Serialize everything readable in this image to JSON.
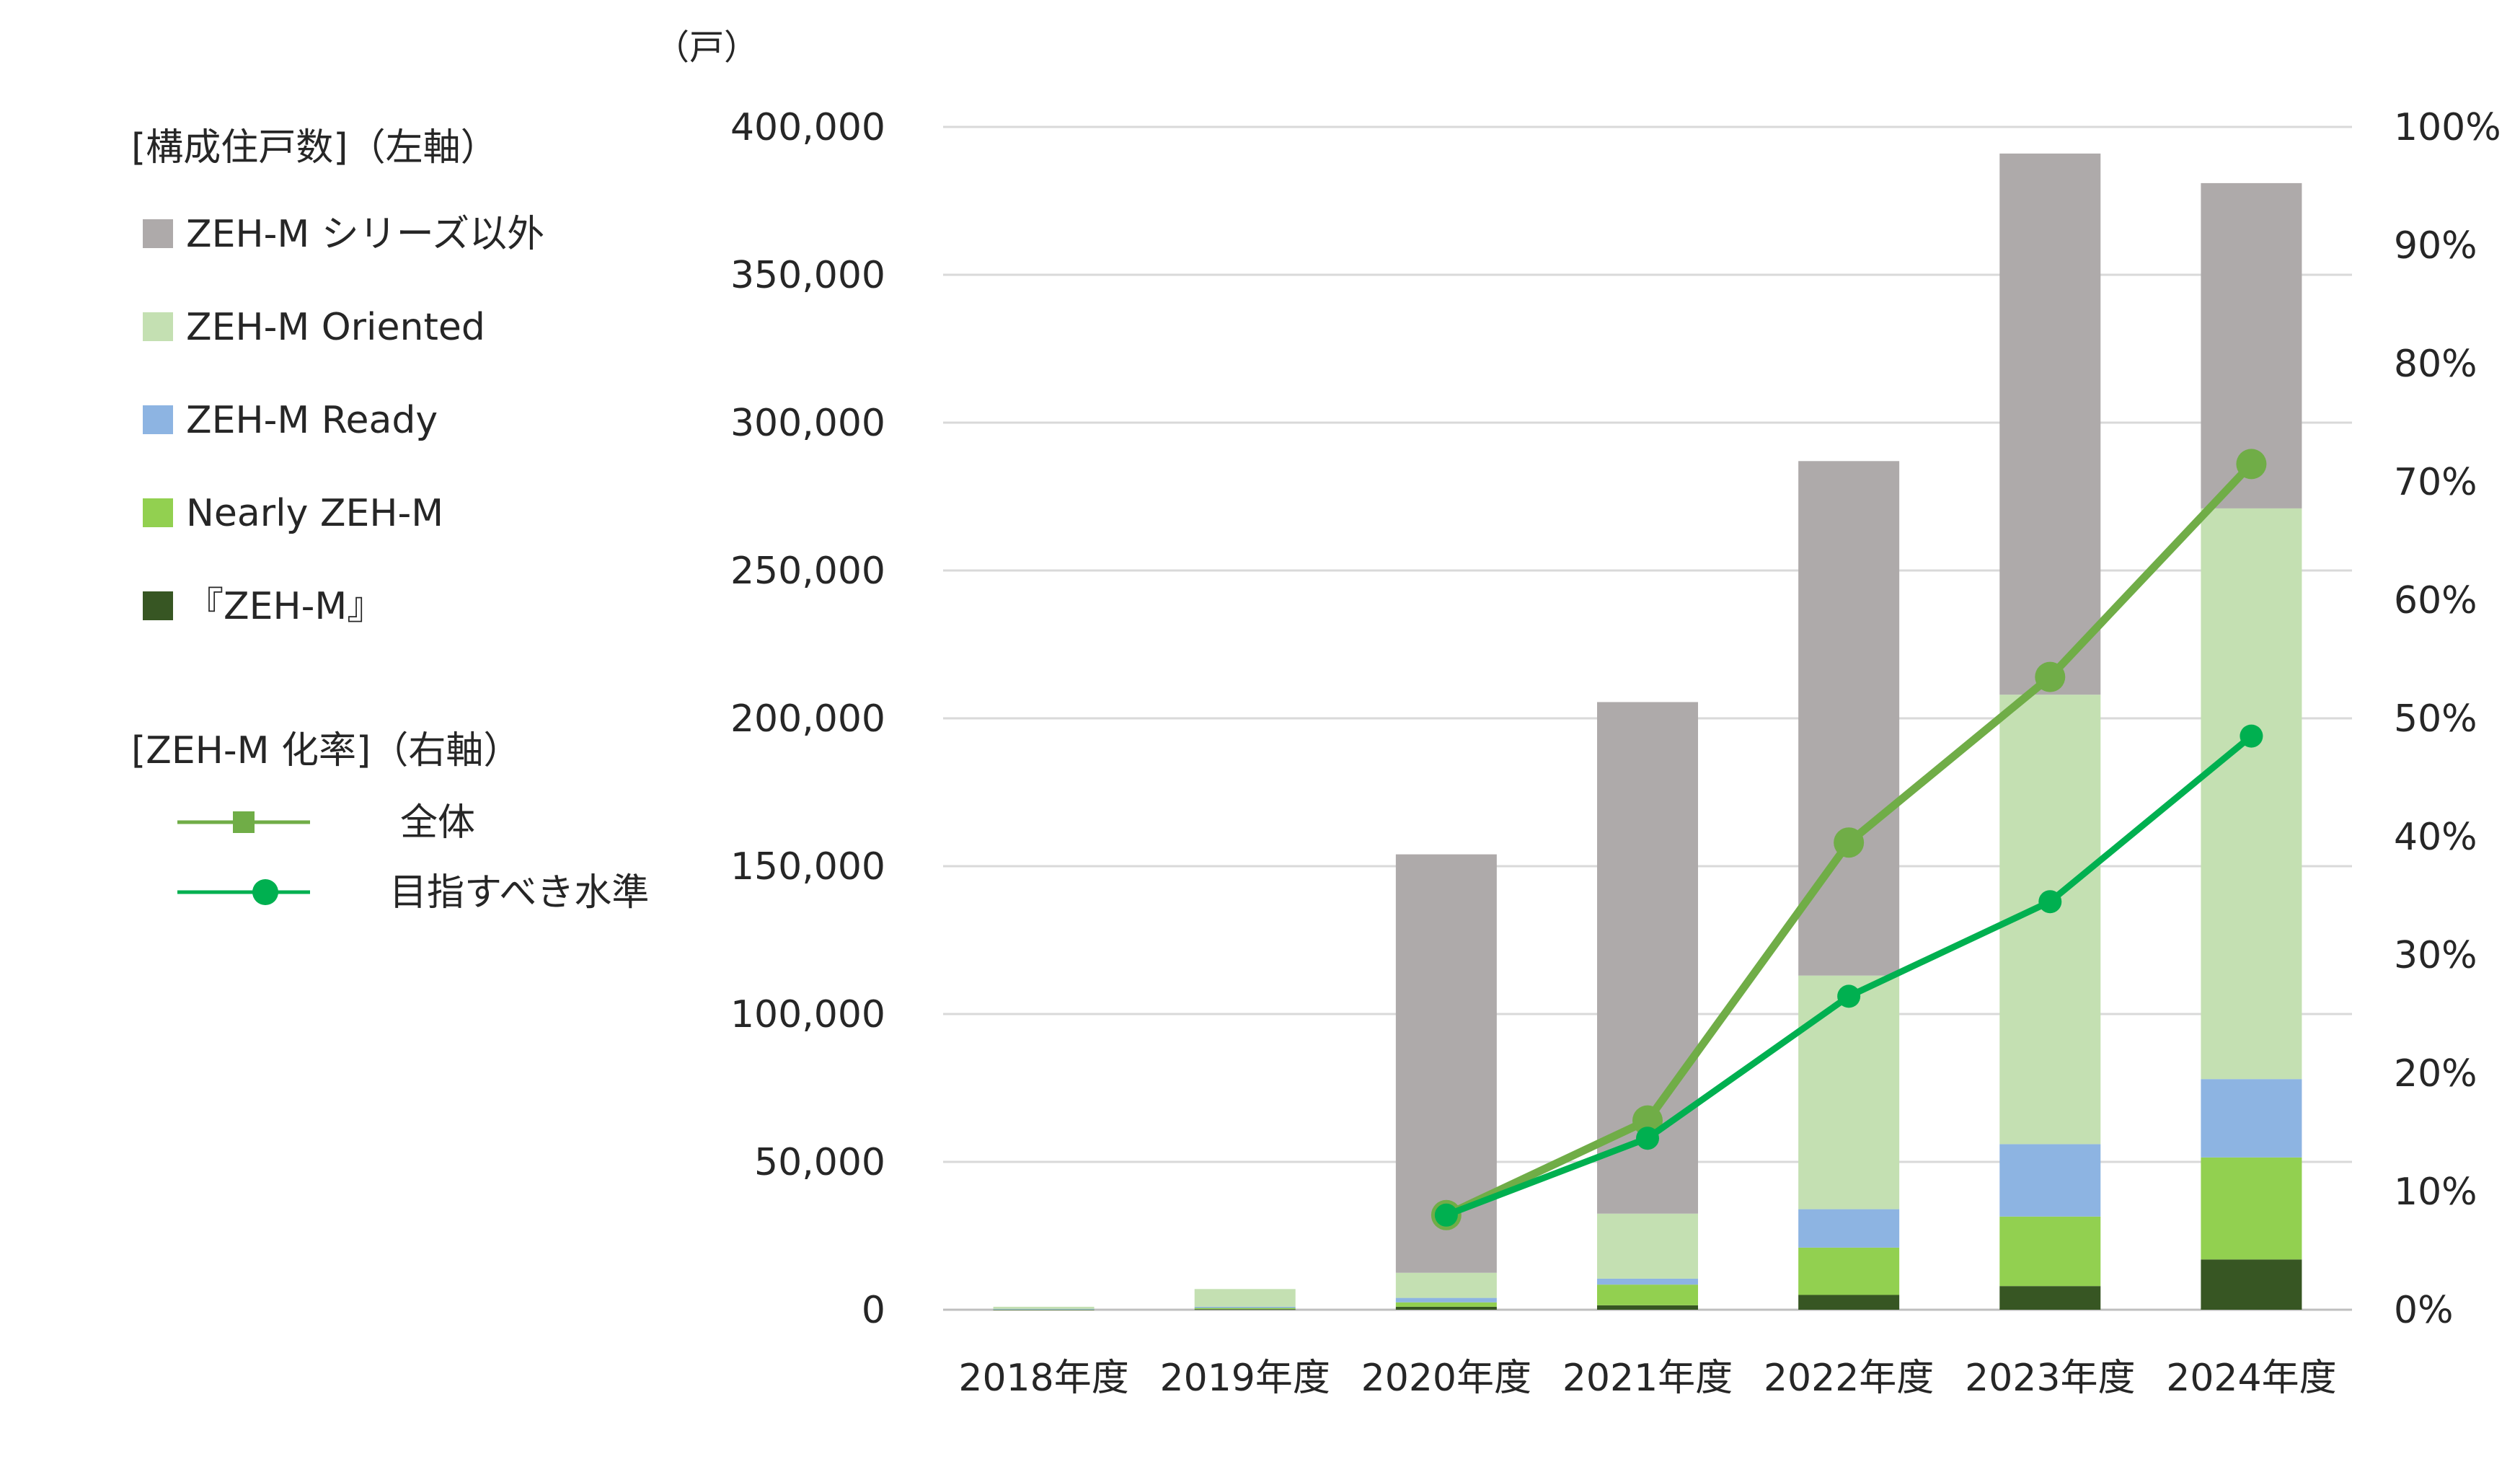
{
  "chart_data": {
    "type": "bar",
    "stacked": true,
    "unit_label": "（戸）",
    "categories": [
      "2018年度",
      "2019年度",
      "2020年度",
      "2021年度",
      "2022年度",
      "2023年度",
      "2024年度"
    ],
    "left_axis": {
      "min": 0,
      "max": 400000,
      "ticks": [
        "0",
        "50,000",
        "100,000",
        "150,000",
        "200,000",
        "250,000",
        "300,000",
        "350,000",
        "400,000"
      ]
    },
    "right_axis": {
      "min": 0,
      "max": 100,
      "ticks": [
        "0%",
        "10%",
        "20%",
        "30%",
        "40%",
        "50%",
        "60%",
        "70%",
        "80%",
        "90%",
        "100%"
      ]
    },
    "grid": true,
    "legend_placement": "left",
    "legend": {
      "bars_heading": "[構成住戸数]（左軸）",
      "lines_heading": "[ZEH-M 化率]（右軸）"
    },
    "series": [
      {
        "name": "『ZEH-M』",
        "color": "#375623",
        "values": [
          100,
          200,
          1000,
          1500,
          5000,
          8000,
          17000
        ]
      },
      {
        "name": "Nearly ZEH-M",
        "color": "#92d050",
        "values": [
          100,
          400,
          1500,
          7000,
          16000,
          23500,
          34500
        ]
      },
      {
        "name": "ZEH-M Ready",
        "color": "#8db4e2",
        "values": [
          100,
          400,
          1500,
          2000,
          13000,
          24500,
          26500
        ]
      },
      {
        "name": "ZEH-M Oriented",
        "color": "#c4e0b2",
        "values": [
          700,
          6000,
          8500,
          22000,
          79000,
          152000,
          193000
        ]
      },
      {
        "name": "ZEH-M シリーズ以外",
        "color": "#aeaaaa",
        "values": [
          0,
          0,
          141500,
          173000,
          174000,
          183000,
          110000
        ]
      }
    ],
    "lines": [
      {
        "name": "全体",
        "color": "#70ad47",
        "marker": "circle",
        "x": [
          "2020年度",
          "2021年度",
          "2022年度",
          "2023年度",
          "2024年度"
        ],
        "values": [
          8,
          16,
          39.5,
          53.5,
          71.5
        ]
      },
      {
        "name": "目指すべき水準",
        "color": "#00b050",
        "marker": "circle",
        "x": [
          "2020年度",
          "2021年度",
          "2022年度",
          "2023年度",
          "2024年度"
        ],
        "values": [
          8,
          14.5,
          26.5,
          34.5,
          48.5
        ]
      }
    ]
  }
}
